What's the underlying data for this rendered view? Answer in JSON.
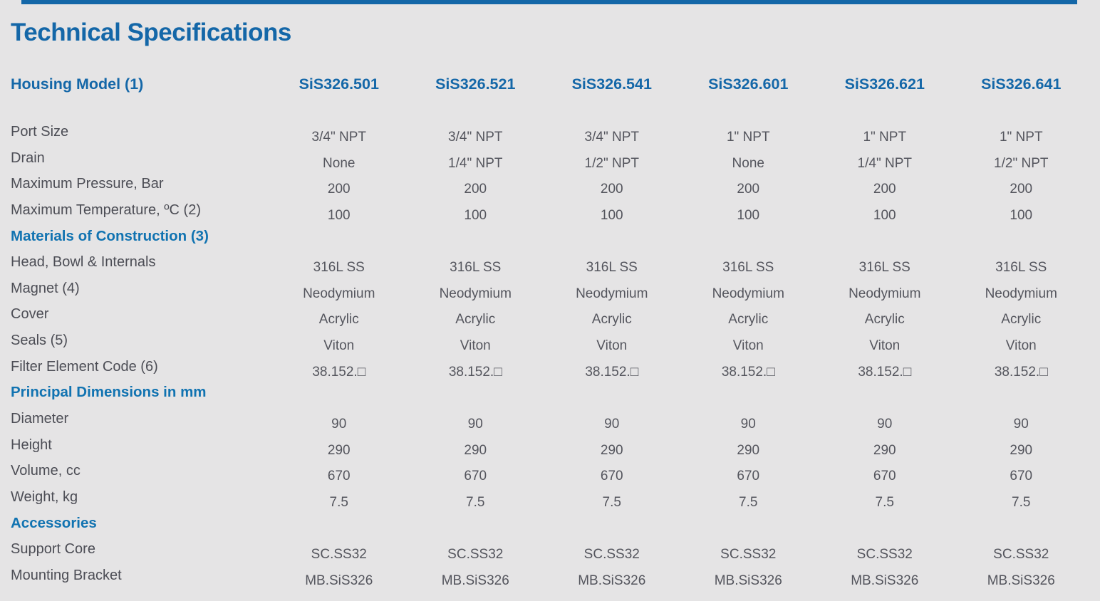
{
  "page": {
    "title": "Technical Specifications"
  },
  "colors": {
    "accent_blue": "#1467A8",
    "section_blue": "#1173B1",
    "label_text": "#4C4D55",
    "value_text": "#54555D",
    "background": "#E5E4E5",
    "top_bar": "#1467A8"
  },
  "table": {
    "header": {
      "label": "Housing Model (1)",
      "models": [
        "SiS326.501",
        "SiS326.521",
        "SiS326.541",
        "SiS326.601",
        "SiS326.621",
        "SiS326.641"
      ]
    },
    "rows": [
      {
        "type": "data",
        "label": "Port Size",
        "values": [
          "3/4\" NPT",
          "3/4\" NPT",
          "3/4\" NPT",
          "1\" NPT",
          "1\" NPT",
          "1\" NPT"
        ]
      },
      {
        "type": "data",
        "label": "Drain",
        "values": [
          "None",
          "1/4\" NPT",
          "1/2\" NPT",
          "None",
          "1/4\" NPT",
          "1/2\" NPT"
        ]
      },
      {
        "type": "data",
        "label": "Maximum Pressure, Bar",
        "values": [
          "200",
          "200",
          "200",
          "200",
          "200",
          "200"
        ]
      },
      {
        "type": "data",
        "label": "Maximum Temperature, ºC (2)",
        "values": [
          "100",
          "100",
          "100",
          "100",
          "100",
          "100"
        ]
      },
      {
        "type": "section",
        "label": "Materials of Construction (3)",
        "values": []
      },
      {
        "type": "data",
        "label": "Head, Bowl & Internals",
        "values": [
          "316L SS",
          "316L SS",
          "316L SS",
          "316L SS",
          "316L SS",
          "316L SS"
        ]
      },
      {
        "type": "data",
        "label": "Magnet (4)",
        "values": [
          "Neodymium",
          "Neodymium",
          "Neodymium",
          "Neodymium",
          "Neodymium",
          "Neodymium"
        ]
      },
      {
        "type": "data",
        "label": "Cover",
        "values": [
          "Acrylic",
          "Acrylic",
          "Acrylic",
          "Acrylic",
          "Acrylic",
          "Acrylic"
        ]
      },
      {
        "type": "data",
        "label": "Seals (5)",
        "values": [
          "Viton",
          "Viton",
          "Viton",
          "Viton",
          "Viton",
          "Viton"
        ]
      },
      {
        "type": "data",
        "label": "Filter Element Code (6)",
        "values": [
          "38.152.□",
          "38.152.□",
          "38.152.□",
          "38.152.□",
          "38.152.□",
          "38.152.□"
        ]
      },
      {
        "type": "section",
        "label": "Principal Dimensions in mm",
        "values": []
      },
      {
        "type": "data",
        "label": "Diameter",
        "values": [
          "90",
          "90",
          "90",
          "90",
          "90",
          "90"
        ]
      },
      {
        "type": "data",
        "label": "Height",
        "values": [
          "290",
          "290",
          "290",
          "290",
          "290",
          "290"
        ]
      },
      {
        "type": "data",
        "label": "Volume, cc",
        "values": [
          "670",
          "670",
          "670",
          "670",
          "670",
          "670"
        ]
      },
      {
        "type": "data",
        "label": "Weight, kg",
        "values": [
          "7.5",
          "7.5",
          "7.5",
          "7.5",
          "7.5",
          "7.5"
        ]
      },
      {
        "type": "section",
        "label": "Accessories",
        "values": []
      },
      {
        "type": "data",
        "label": "Support Core",
        "values": [
          "SC.SS32",
          "SC.SS32",
          "SC.SS32",
          "SC.SS32",
          "SC.SS32",
          "SC.SS32"
        ]
      },
      {
        "type": "data",
        "label": "Mounting Bracket",
        "values": [
          "MB.SiS326",
          "MB.SiS326",
          "MB.SiS326",
          "MB.SiS326",
          "MB.SiS326",
          "MB.SiS326"
        ]
      }
    ]
  }
}
